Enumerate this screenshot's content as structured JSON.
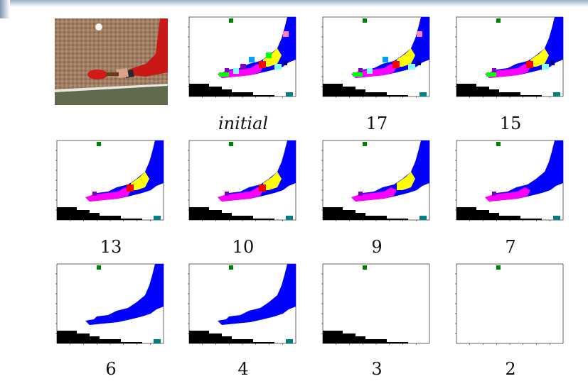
{
  "figure": {
    "photo_icon": "table-tennis-photo",
    "panels": [
      {
        "label": "initial",
        "italic": true
      },
      {
        "label": "17"
      },
      {
        "label": "15"
      },
      {
        "label": "13"
      },
      {
        "label": "10"
      },
      {
        "label": "9"
      },
      {
        "label": "7"
      },
      {
        "label": "6"
      },
      {
        "label": "4"
      },
      {
        "label": "3"
      },
      {
        "label": "2"
      }
    ],
    "colors": {
      "black": "#000000",
      "blue": "#0000ff",
      "green": "#008000",
      "magenta": "#ff00ff",
      "yellow": "#ffff00",
      "red": "#ff0000",
      "teal": "#008080",
      "cyan": "#80ffff",
      "lime": "#00ff00",
      "purple": "#8000c0",
      "pink": "#ff80c0",
      "navy": "#000080",
      "skyblue": "#00a0ff"
    }
  }
}
